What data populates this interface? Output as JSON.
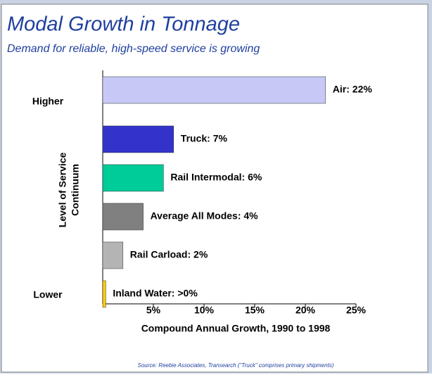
{
  "chart_data": {
    "type": "bar",
    "orientation": "horizontal",
    "title": "Modal Growth in Tonnage",
    "subtitle": "Demand for reliable, high-speed service is growing",
    "values": [
      22,
      7,
      6,
      4,
      2,
      0.3
    ],
    "value_labels": [
      "Air: 22%",
      "Truck: 7%",
      "Rail Intermodal: 6%",
      "Average All Modes: 4%",
      "Rail Carload: 2%",
      "Inland Water: >0%"
    ],
    "colors": [
      "#c8c8f6",
      "#3333cc",
      "#00cc99",
      "#808080",
      "#b4b4b4",
      "#ffcc00"
    ],
    "xlim": [
      0,
      25
    ],
    "xticks": [
      {
        "value": 5,
        "label": "5%"
      },
      {
        "value": 10,
        "label": "10%"
      },
      {
        "value": 15,
        "label": "15%"
      },
      {
        "value": 20,
        "label": "20%"
      },
      {
        "value": 25,
        "label": "25%"
      }
    ],
    "x_label": "Compound Annual Growth, 1990 to 1998",
    "y_label": [
      "Level of Service",
      "Continuum"
    ],
    "y_end_labels": [
      "Higher",
      "Lower"
    ],
    "source": "Source: Reebie Associates, Transearch (\"Truck\" comprises primary shipments)"
  }
}
